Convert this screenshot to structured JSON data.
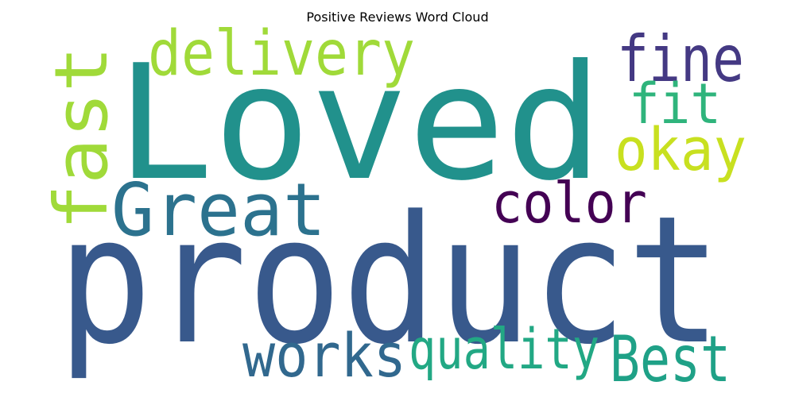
{
  "title": "Positive Reviews Word Cloud",
  "words": [
    {
      "text": "Loved",
      "color": "#21918c",
      "orientation": "horizontal"
    },
    {
      "text": "product",
      "color": "#38598c",
      "orientation": "horizontal"
    },
    {
      "text": "fast",
      "color": "#a0da39",
      "orientation": "vertical"
    },
    {
      "text": "delivery",
      "color": "#a0da39",
      "orientation": "horizontal"
    },
    {
      "text": "fine",
      "color": "#443983",
      "orientation": "horizontal"
    },
    {
      "text": "fit",
      "color": "#2fb47c",
      "orientation": "horizontal"
    },
    {
      "text": "okay",
      "color": "#c8e020",
      "orientation": "horizontal"
    },
    {
      "text": "Great",
      "color": "#2c728e",
      "orientation": "horizontal"
    },
    {
      "text": "color",
      "color": "#440154",
      "orientation": "horizontal"
    },
    {
      "text": "works",
      "color": "#31688e",
      "orientation": "horizontal"
    },
    {
      "text": "quality",
      "color": "#22a884",
      "orientation": "horizontal"
    },
    {
      "text": "Best",
      "color": "#1fa187",
      "orientation": "horizontal"
    }
  ]
}
